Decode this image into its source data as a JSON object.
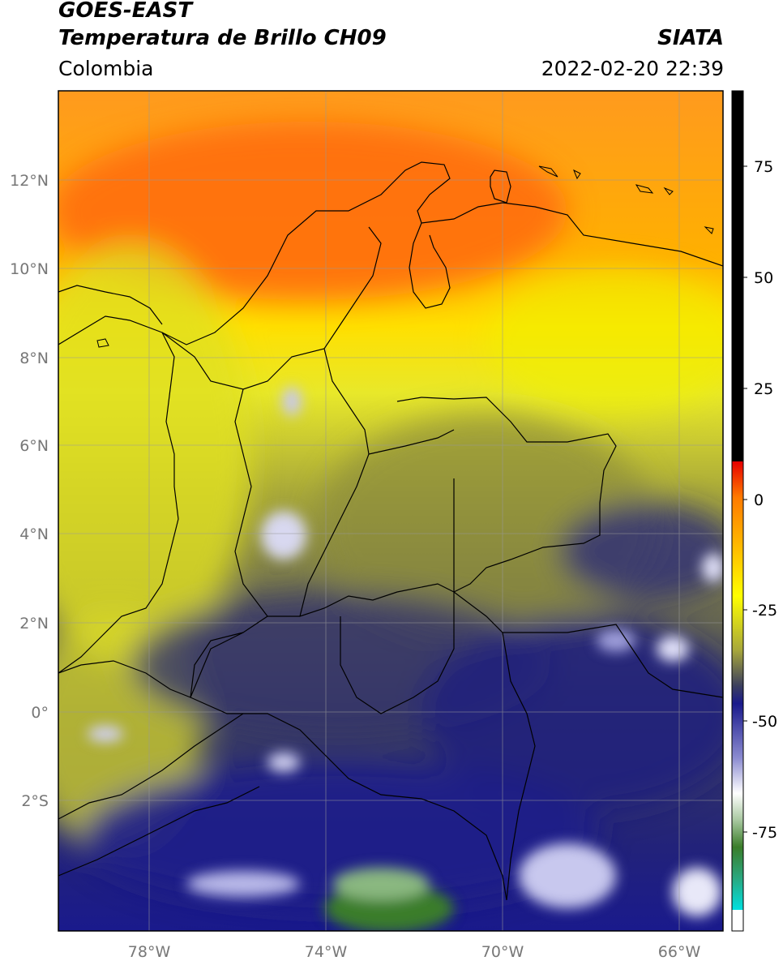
{
  "header": {
    "title_line1": "GOES-EAST",
    "title_line2": "Temperatura de Brillo CH09",
    "brand": "SIATA",
    "region": "Colombia",
    "timestamp": "2022-02-20 22:39"
  },
  "axes": {
    "lat_labels": [
      "12°N",
      "10°N",
      "8°N",
      "6°N",
      "4°N",
      "2°N",
      "0°",
      "2°S"
    ],
    "lon_labels": [
      "78°W",
      "74°W",
      "70°W",
      "66°W"
    ]
  },
  "colorbar": {
    "tick_labels": [
      "75",
      "50",
      "25",
      "0",
      "-25",
      "-50",
      "-75"
    ],
    "colors": {
      "black": "#000000",
      "red": "#e60000",
      "orange": "#ff8a00",
      "yellow": "#ffff00",
      "olive": "#8a8a2a",
      "gray_blue": "#3c3f5e",
      "navy": "#1a1a8c",
      "white": "#ffffff",
      "green": "#3a7d2a",
      "cyan": "#00e0e0"
    }
  }
}
